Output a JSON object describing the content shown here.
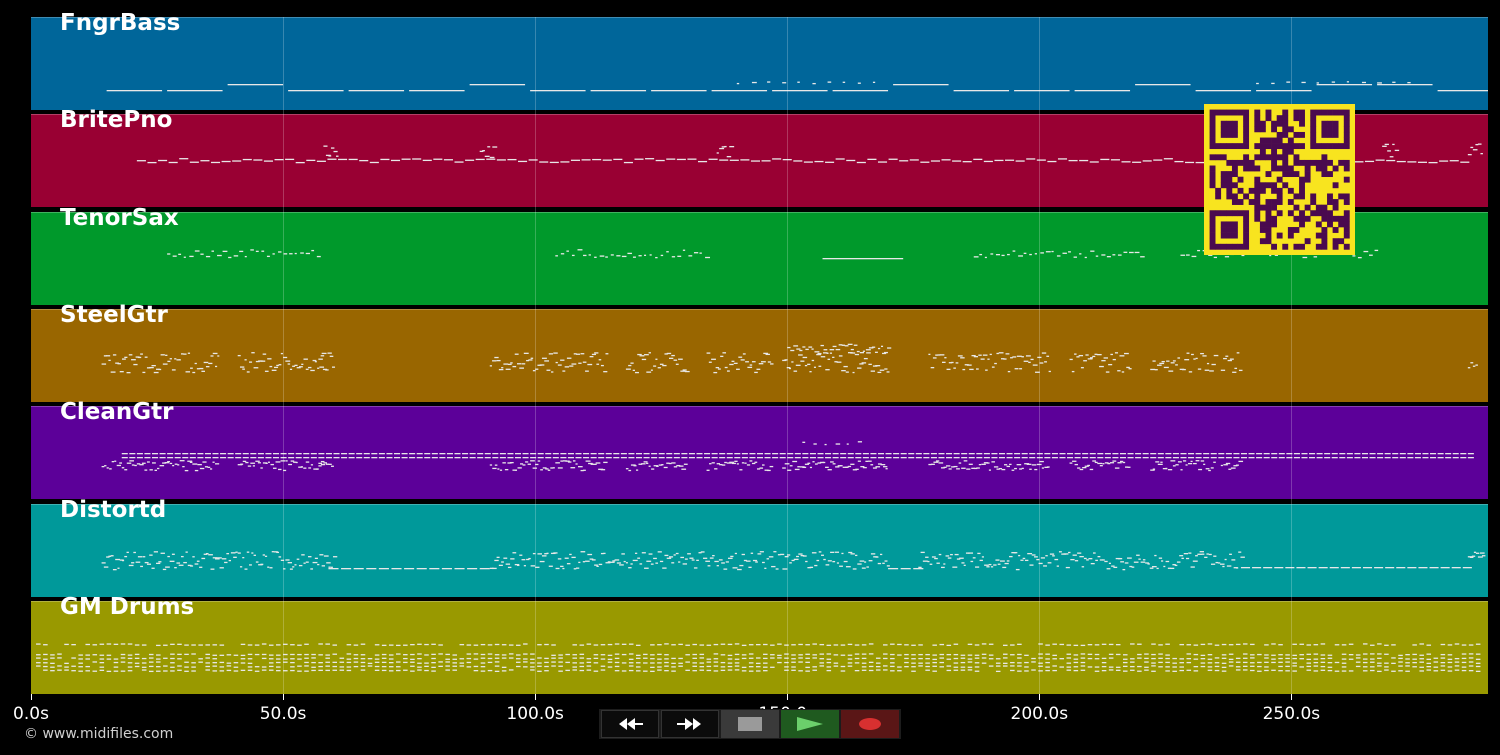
{
  "app": {
    "copyright": "© www.midifiles.com"
  },
  "timeline": {
    "duration_s": 289,
    "ticks": [
      {
        "value": 0,
        "label": "0.0s"
      },
      {
        "value": 50,
        "label": "50.0s"
      },
      {
        "value": 100,
        "label": "100.0s"
      },
      {
        "value": 150,
        "label": "150.0s"
      },
      {
        "value": 200,
        "label": "200.0s"
      },
      {
        "value": 250,
        "label": "250.0s"
      }
    ]
  },
  "tracks": [
    {
      "name": "FngrBass",
      "color": "#00669a",
      "style": "bass"
    },
    {
      "name": "BritePno",
      "color": "#990033",
      "style": "piano"
    },
    {
      "name": "TenorSax",
      "color": "#00992b",
      "style": "sax"
    },
    {
      "name": "SteelGtr",
      "color": "#996600",
      "style": "steel"
    },
    {
      "name": "CleanGtr",
      "color": "#5c0099",
      "style": "clean"
    },
    {
      "name": "Distortd",
      "color": "#00999a",
      "style": "dist"
    },
    {
      "name": "GM Drums",
      "color": "#999900",
      "style": "drums"
    }
  ],
  "transport": {
    "buttons": [
      {
        "name": "rewind-button",
        "icon": "rewind-icon"
      },
      {
        "name": "fast-forward-button",
        "icon": "fast-forward-icon"
      },
      {
        "name": "stop-button",
        "icon": "stop-icon"
      },
      {
        "name": "play-button",
        "icon": "play-icon"
      },
      {
        "name": "record-button",
        "icon": "record-icon"
      }
    ]
  },
  "overlay": {
    "qr_icon": "qr-code-icon",
    "qr_colors": {
      "light": "#f8e41f",
      "dark": "#4a0a4f"
    }
  }
}
